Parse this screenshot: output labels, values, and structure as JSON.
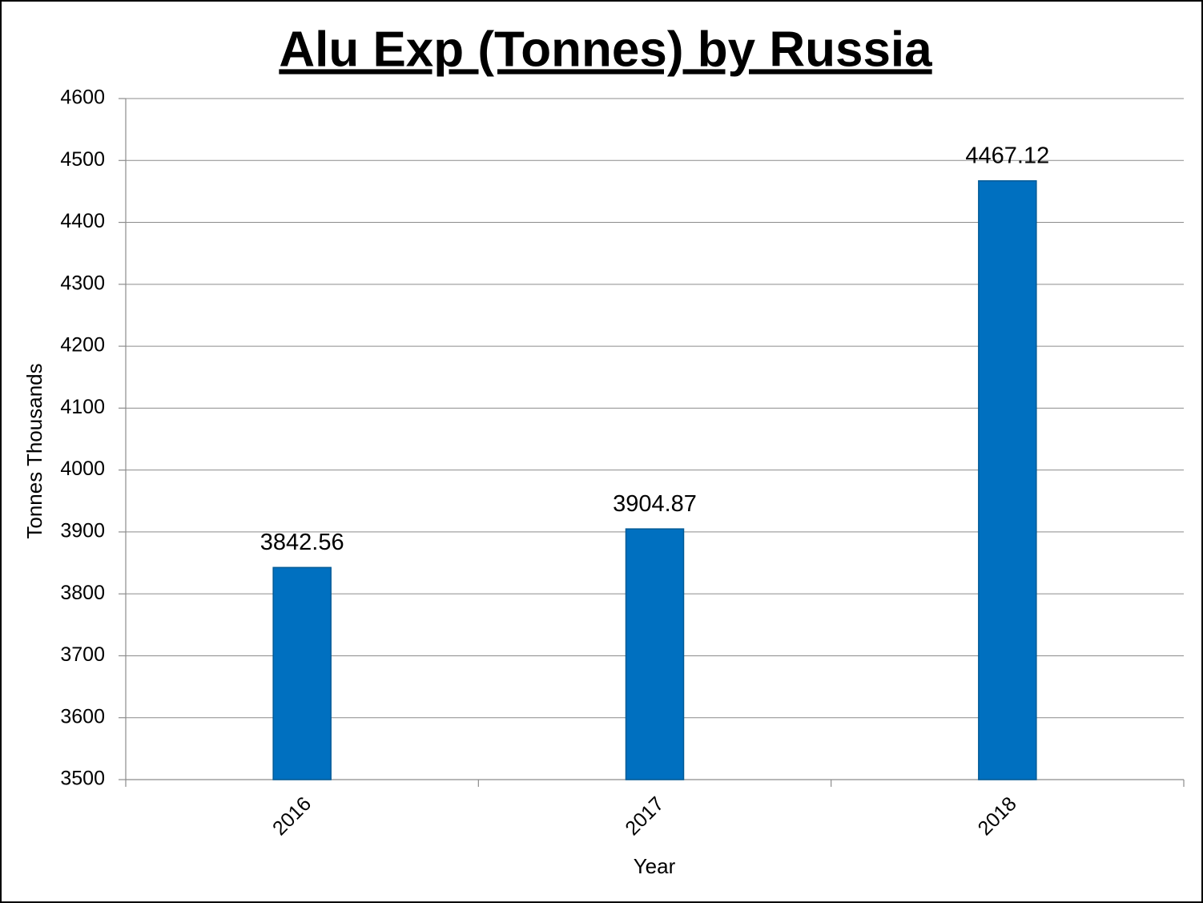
{
  "chart_data": {
    "type": "bar",
    "title": "Alu Exp (Tonnes) by Russia",
    "x_label": "Year",
    "y_label": "Tonnes Thousands",
    "categories": [
      "2016",
      "2017",
      "2018"
    ],
    "values": [
      3842.56,
      3904.87,
      4467.12
    ],
    "color": "#0070c0",
    "ylim": [
      3500,
      4600
    ],
    "yticks": [
      3500,
      3600,
      3700,
      3800,
      3900,
      4000,
      4100,
      4200,
      4300,
      4400,
      4500,
      4600
    ],
    "grid": true
  }
}
